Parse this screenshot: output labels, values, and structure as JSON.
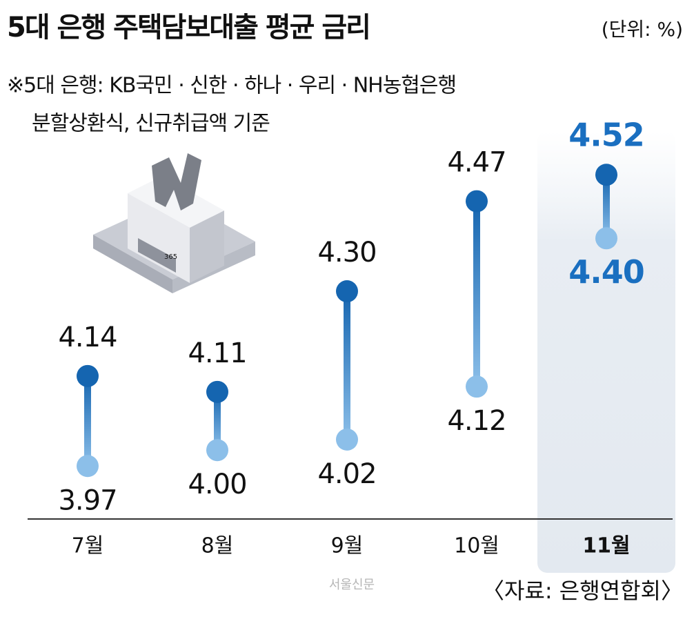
{
  "chart_data": {
    "type": "dumbbell",
    "title": "5대 은행 주택담보대출 평균 금리",
    "unit": "(단위: %)",
    "notes": [
      "※5대 은행: KB국민 · 신한 · 하나 · 우리 · NH농협은행",
      "분할상환식, 신규취급액 기준"
    ],
    "source": "〈자료: 은행연합회〉",
    "credit": "서울신문",
    "categories": [
      "7월",
      "8월",
      "9월",
      "10월",
      "11월"
    ],
    "series": [
      {
        "color": "#1565b0",
        "values": [
          4.14,
          4.11,
          4.3,
          4.47,
          4.52
        ],
        "value_labels": [
          "4.14",
          "4.11",
          "4.30",
          "4.47",
          "4.52"
        ]
      },
      {
        "color": "#8cbfe9",
        "values": [
          3.97,
          4.0,
          4.02,
          4.12,
          4.4
        ],
        "value_labels": [
          "3.97",
          "4.00",
          "4.02",
          "4.12",
          "4.40"
        ]
      }
    ],
    "ylim": [
      3.87,
      4.85
    ]
  }
}
